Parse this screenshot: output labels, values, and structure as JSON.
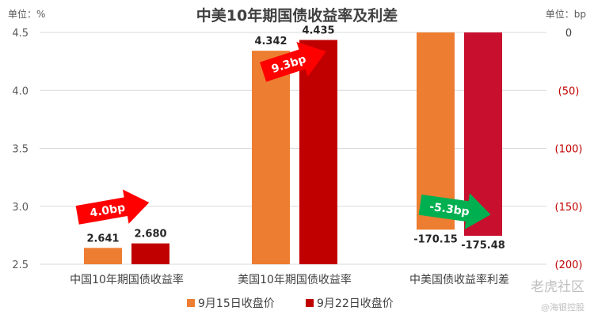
{
  "chart_data": {
    "type": "bar",
    "title": "中美10年期国债收益率及利差",
    "left_unit": "单位：%",
    "right_unit": "单位：bp",
    "categories": [
      "中国10年期国债收益率",
      "美国10年期国债收益率",
      "中美国债收益率利差"
    ],
    "left_axis": {
      "ylim": [
        2.5,
        4.5
      ],
      "ticks": [
        "2.5",
        "3.0",
        "3.5",
        "4.0",
        "4.5"
      ]
    },
    "right_axis": {
      "ylim": [
        -200,
        0
      ],
      "ticks": [
        "0",
        "(50)",
        "(100)",
        "(150)",
        "(200)"
      ]
    },
    "series": [
      {
        "name": "9月15日收盘价",
        "color": "#ED7D31",
        "values": [
          2.641,
          4.342,
          -170.15
        ],
        "labels": [
          "2.641",
          "4.342",
          "-170.15"
        ]
      },
      {
        "name": "9月22日收盘价",
        "color": "#C00000",
        "values": [
          2.68,
          4.435,
          -175.48
        ],
        "labels": [
          "2.680",
          "4.435",
          "-175.48"
        ]
      }
    ],
    "annotations": [
      {
        "text": "4.0bp",
        "color": "#FF0000",
        "category": 0
      },
      {
        "text": "9.3bp",
        "color": "#FF0000",
        "category": 1
      },
      {
        "text": "-5.3bp",
        "color": "#00B050",
        "category": 2
      }
    ],
    "grid": true,
    "legend_position": "bottom"
  },
  "watermark": {
    "main": "老虎社区",
    "sub": "@海银控股"
  }
}
